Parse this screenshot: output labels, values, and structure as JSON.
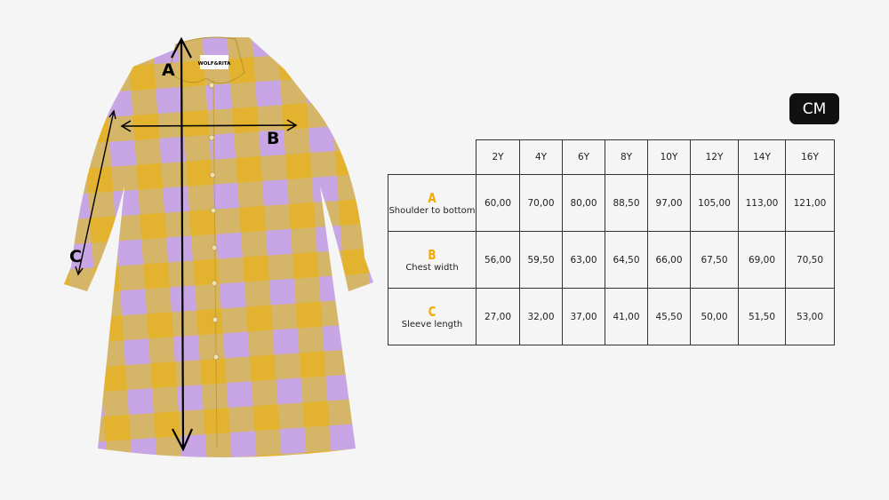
{
  "brand_label": "WOLF&RITA",
  "unit_badge": "CM",
  "colors": {
    "accent": "#f6a800",
    "gingham_yellow": "#e3b22e",
    "gingham_beige": "#d2b673",
    "gingham_lilac": "#c8a5e4"
  },
  "diagram_labels": {
    "a": "A",
    "b": "B",
    "c": "C"
  },
  "table": {
    "sizes": [
      "2Y",
      "4Y",
      "6Y",
      "8Y",
      "10Y",
      "12Y",
      "14Y",
      "16Y"
    ],
    "rows": [
      {
        "letter": "A",
        "label": "Shoulder to bottom",
        "values": [
          "60,00",
          "70,00",
          "80,00",
          "88,50",
          "97,00",
          "105,00",
          "113,00",
          "121,00"
        ]
      },
      {
        "letter": "B",
        "label": "Chest width",
        "values": [
          "56,00",
          "59,50",
          "63,00",
          "64,50",
          "66,00",
          "67,50",
          "69,00",
          "70,50"
        ]
      },
      {
        "letter": "C",
        "label": "Sleeve length",
        "values": [
          "27,00",
          "32,00",
          "37,00",
          "41,00",
          "45,50",
          "50,00",
          "51,50",
          "53,00"
        ]
      }
    ]
  }
}
